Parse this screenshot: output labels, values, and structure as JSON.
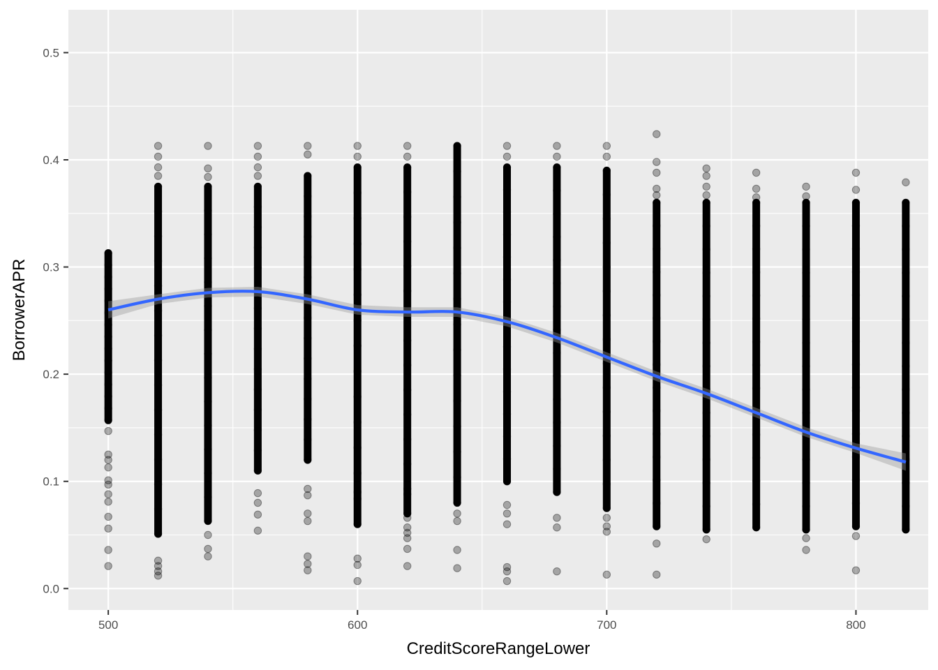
{
  "chart_data": {
    "type": "scatter",
    "title": "",
    "xlabel": "CreditScoreRangeLower",
    "ylabel": "BorrowerAPR",
    "xlim": [
      484,
      829
    ],
    "ylim": [
      -0.02,
      0.54
    ],
    "x_ticks": [
      {
        "value": 500,
        "label": "500"
      },
      {
        "value": 600,
        "label": "600"
      },
      {
        "value": 700,
        "label": "700"
      },
      {
        "value": 800,
        "label": "800"
      }
    ],
    "y_ticks": [
      {
        "value": 0.0,
        "label": "0.0"
      },
      {
        "value": 0.1,
        "label": "0.1"
      },
      {
        "value": 0.2,
        "label": "0.2"
      },
      {
        "value": 0.3,
        "label": "0.3"
      },
      {
        "value": 0.4,
        "label": "0.4"
      },
      {
        "value": 0.5,
        "label": "0.5"
      }
    ],
    "grid": true,
    "legend": "none",
    "colors": {
      "panel": "#ebebeb",
      "grid": "#ffffff",
      "points": "#000000",
      "smooth_line": "#3366ff",
      "confidence_band": "#999999"
    },
    "point_alpha": 0.3,
    "columns": [
      {
        "x": 500,
        "dense": [
          [
            0.157,
            0.313
          ]
        ],
        "sparse": [
          0.021,
          0.036,
          0.056,
          0.067,
          0.081,
          0.088,
          0.097,
          0.101,
          0.113,
          0.12,
          0.125,
          0.147
        ]
      },
      {
        "x": 520,
        "dense": [
          [
            0.051,
            0.375
          ]
        ],
        "sparse": [
          0.012,
          0.016,
          0.021,
          0.026,
          0.385,
          0.393,
          0.403,
          0.413
        ]
      },
      {
        "x": 540,
        "dense": [
          [
            0.063,
            0.375
          ]
        ],
        "sparse": [
          0.03,
          0.037,
          0.05,
          0.384,
          0.392,
          0.413
        ]
      },
      {
        "x": 560,
        "dense": [
          [
            0.11,
            0.375
          ]
        ],
        "sparse": [
          0.054,
          0.069,
          0.08,
          0.089,
          0.385,
          0.393,
          0.403,
          0.413
        ]
      },
      {
        "x": 580,
        "dense": [
          [
            0.12,
            0.385
          ]
        ],
        "sparse": [
          0.017,
          0.023,
          0.03,
          0.063,
          0.07,
          0.087,
          0.093,
          0.405,
          0.413
        ]
      },
      {
        "x": 600,
        "dense": [
          [
            0.06,
            0.393
          ]
        ],
        "sparse": [
          0.007,
          0.022,
          0.028,
          0.09,
          0.403,
          0.413
        ]
      },
      {
        "x": 620,
        "dense": [
          [
            0.07,
            0.393
          ]
        ],
        "sparse": [
          0.021,
          0.037,
          0.047,
          0.052,
          0.057,
          0.066,
          0.088,
          0.403,
          0.413
        ]
      },
      {
        "x": 640,
        "dense": [
          [
            0.08,
            0.413
          ]
        ],
        "sparse": [
          0.019,
          0.036,
          0.063,
          0.07
        ]
      },
      {
        "x": 660,
        "dense": [
          [
            0.1,
            0.393
          ]
        ],
        "sparse": [
          0.007,
          0.016,
          0.02,
          0.06,
          0.07,
          0.078,
          0.403,
          0.413
        ]
      },
      {
        "x": 680,
        "dense": [
          [
            0.09,
            0.393
          ]
        ],
        "sparse": [
          0.016,
          0.057,
          0.066,
          0.403,
          0.413
        ]
      },
      {
        "x": 700,
        "dense": [
          [
            0.075,
            0.39
          ]
        ],
        "sparse": [
          0.013,
          0.053,
          0.058,
          0.066,
          0.403,
          0.413
        ]
      },
      {
        "x": 720,
        "dense": [
          [
            0.058,
            0.36
          ]
        ],
        "sparse": [
          0.013,
          0.042,
          0.367,
          0.373,
          0.388,
          0.398,
          0.424
        ]
      },
      {
        "x": 740,
        "dense": [
          [
            0.055,
            0.36
          ]
        ],
        "sparse": [
          0.046,
          0.367,
          0.375,
          0.385,
          0.392
        ]
      },
      {
        "x": 760,
        "dense": [
          [
            0.057,
            0.36
          ]
        ],
        "sparse": [
          0.365,
          0.373,
          0.388
        ]
      },
      {
        "x": 780,
        "dense": [
          [
            0.055,
            0.36
          ]
        ],
        "sparse": [
          0.036,
          0.047,
          0.366,
          0.375
        ]
      },
      {
        "x": 800,
        "dense": [
          [
            0.058,
            0.36
          ]
        ],
        "sparse": [
          0.017,
          0.049,
          0.372,
          0.388
        ]
      },
      {
        "x": 820,
        "dense": [
          [
            0.055,
            0.36
          ]
        ],
        "sparse": [
          0.379
        ]
      }
    ],
    "smooth": {
      "x": [
        500,
        520,
        540,
        560,
        580,
        600,
        620,
        640,
        660,
        680,
        700,
        720,
        740,
        760,
        780,
        800,
        820
      ],
      "y": [
        0.26,
        0.27,
        0.276,
        0.277,
        0.27,
        0.26,
        0.258,
        0.258,
        0.249,
        0.234,
        0.216,
        0.198,
        0.182,
        0.164,
        0.146,
        0.131,
        0.118
      ]
    }
  }
}
